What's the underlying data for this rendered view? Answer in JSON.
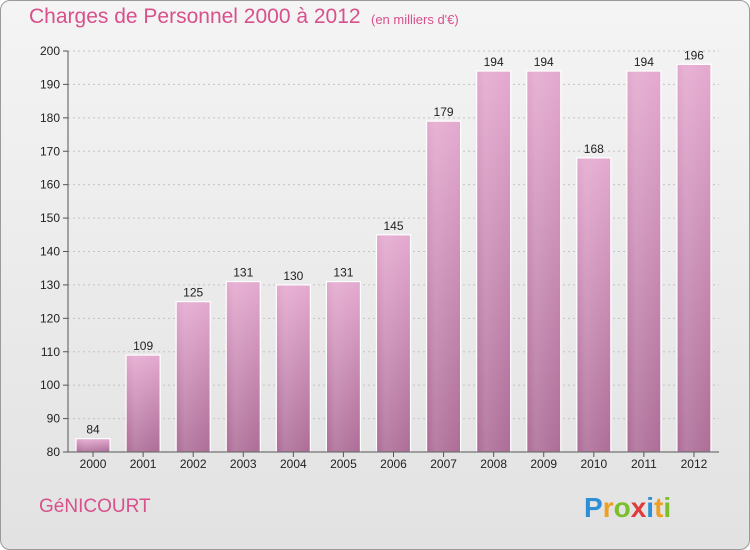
{
  "header": {
    "title": "Charges de Personnel 2000 à 2012",
    "subtitle": "(en milliers d'€)"
  },
  "footer": {
    "town": "GéNICOURT",
    "logo_text": "Proxiti"
  },
  "colors": {
    "accent": "#d8508c",
    "bar_top": "#e2a6cc",
    "bar_bottom": "#b07098"
  },
  "chart_data": {
    "type": "bar",
    "categories": [
      "2000",
      "2001",
      "2002",
      "2003",
      "2004",
      "2005",
      "2006",
      "2007",
      "2008",
      "2009",
      "2010",
      "2011",
      "2012"
    ],
    "values": [
      84,
      109,
      125,
      131,
      130,
      131,
      145,
      179,
      194,
      194,
      168,
      194,
      196
    ],
    "title": "Charges de Personnel 2000 à 2012",
    "ylim": [
      80,
      200
    ],
    "yticks": [
      80,
      90,
      100,
      110,
      120,
      130,
      140,
      150,
      160,
      170,
      180,
      190,
      200
    ],
    "grid": true,
    "data_labels": true
  }
}
